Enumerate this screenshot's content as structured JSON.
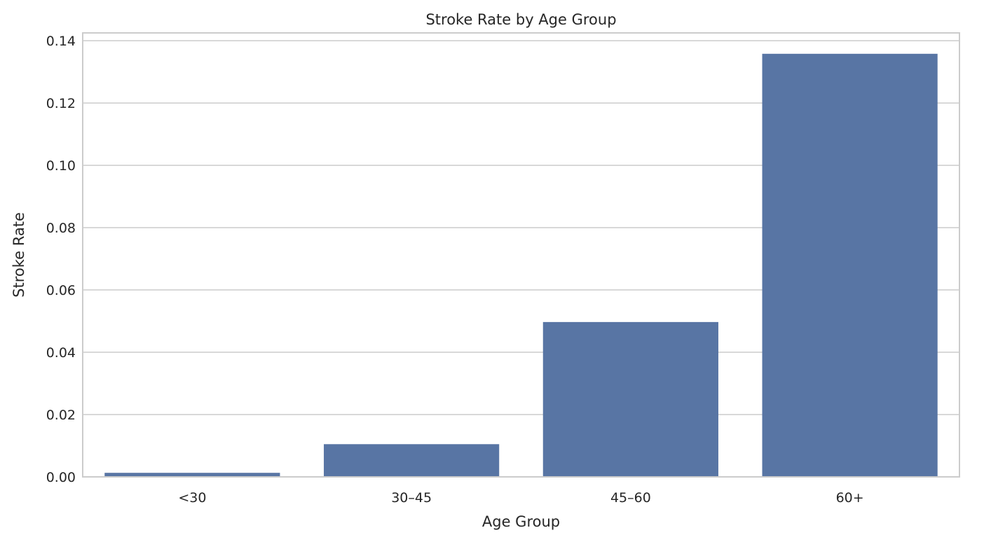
{
  "chart_data": {
    "type": "bar",
    "title": "Stroke Rate by Age Group",
    "xlabel": "Age Group",
    "ylabel": "Stroke Rate",
    "categories": [
      "<30",
      "30–45",
      "45–60",
      "60+"
    ],
    "values": [
      0.0013,
      0.0105,
      0.0497,
      0.1358
    ],
    "ylim": [
      0,
      0.1425
    ],
    "yticks": [
      "0.00",
      "0.02",
      "0.04",
      "0.06",
      "0.08",
      "0.10",
      "0.12",
      "0.14"
    ],
    "ytick_values": [
      0,
      0.02,
      0.04,
      0.06,
      0.08,
      0.1,
      0.12,
      0.14
    ],
    "grid": "y",
    "bar_color": "#5875a4"
  }
}
